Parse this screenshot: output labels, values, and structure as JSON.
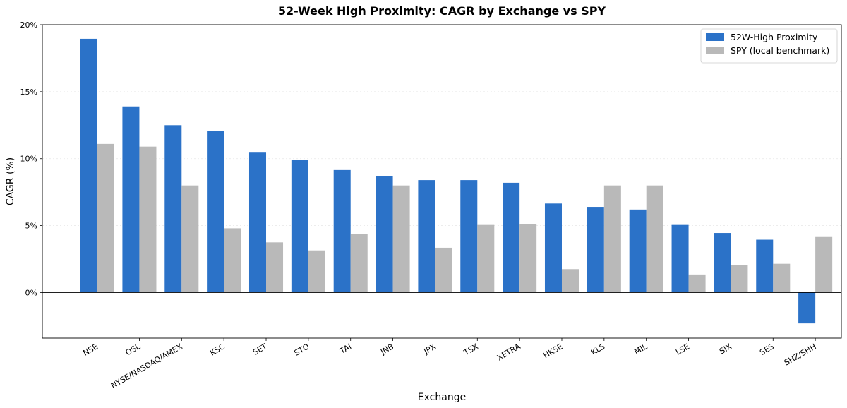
{
  "chart_data": {
    "type": "bar",
    "title": "52-Week High Proximity: CAGR by Exchange vs SPY",
    "xlabel": "Exchange",
    "ylabel": "CAGR (%)",
    "ylim": [
      -3.4,
      20
    ],
    "yticks": [
      0,
      5,
      10,
      15,
      20
    ],
    "ytick_labels": [
      "0%",
      "5%",
      "10%",
      "15%",
      "20%"
    ],
    "grid": "y-dotted",
    "legend_position": "top-right",
    "categories": [
      "NSE",
      "OSL",
      "NYSE/NASDAQ/AMEX",
      "KSC",
      "SET",
      "STO",
      "TAI",
      "JNB",
      "JPX",
      "TSX",
      "XETRA",
      "HKSE",
      "KLS",
      "MIL",
      "LSE",
      "SIX",
      "SES",
      "SHZ/SHH"
    ],
    "series": [
      {
        "name": "52W-High Proximity",
        "color": "#2b72c8",
        "values": [
          18.95,
          13.9,
          12.5,
          12.05,
          10.45,
          9.9,
          9.15,
          8.7,
          8.4,
          8.4,
          8.2,
          6.65,
          6.4,
          6.2,
          5.05,
          4.45,
          3.95,
          -2.3
        ]
      },
      {
        "name": "SPY (local benchmark)",
        "color": "#b9b9b9",
        "values": [
          11.1,
          10.9,
          8.0,
          4.8,
          3.75,
          3.15,
          4.35,
          8.0,
          3.35,
          5.05,
          5.1,
          1.75,
          8.0,
          8.0,
          1.35,
          2.05,
          2.15,
          4.15
        ]
      }
    ]
  }
}
